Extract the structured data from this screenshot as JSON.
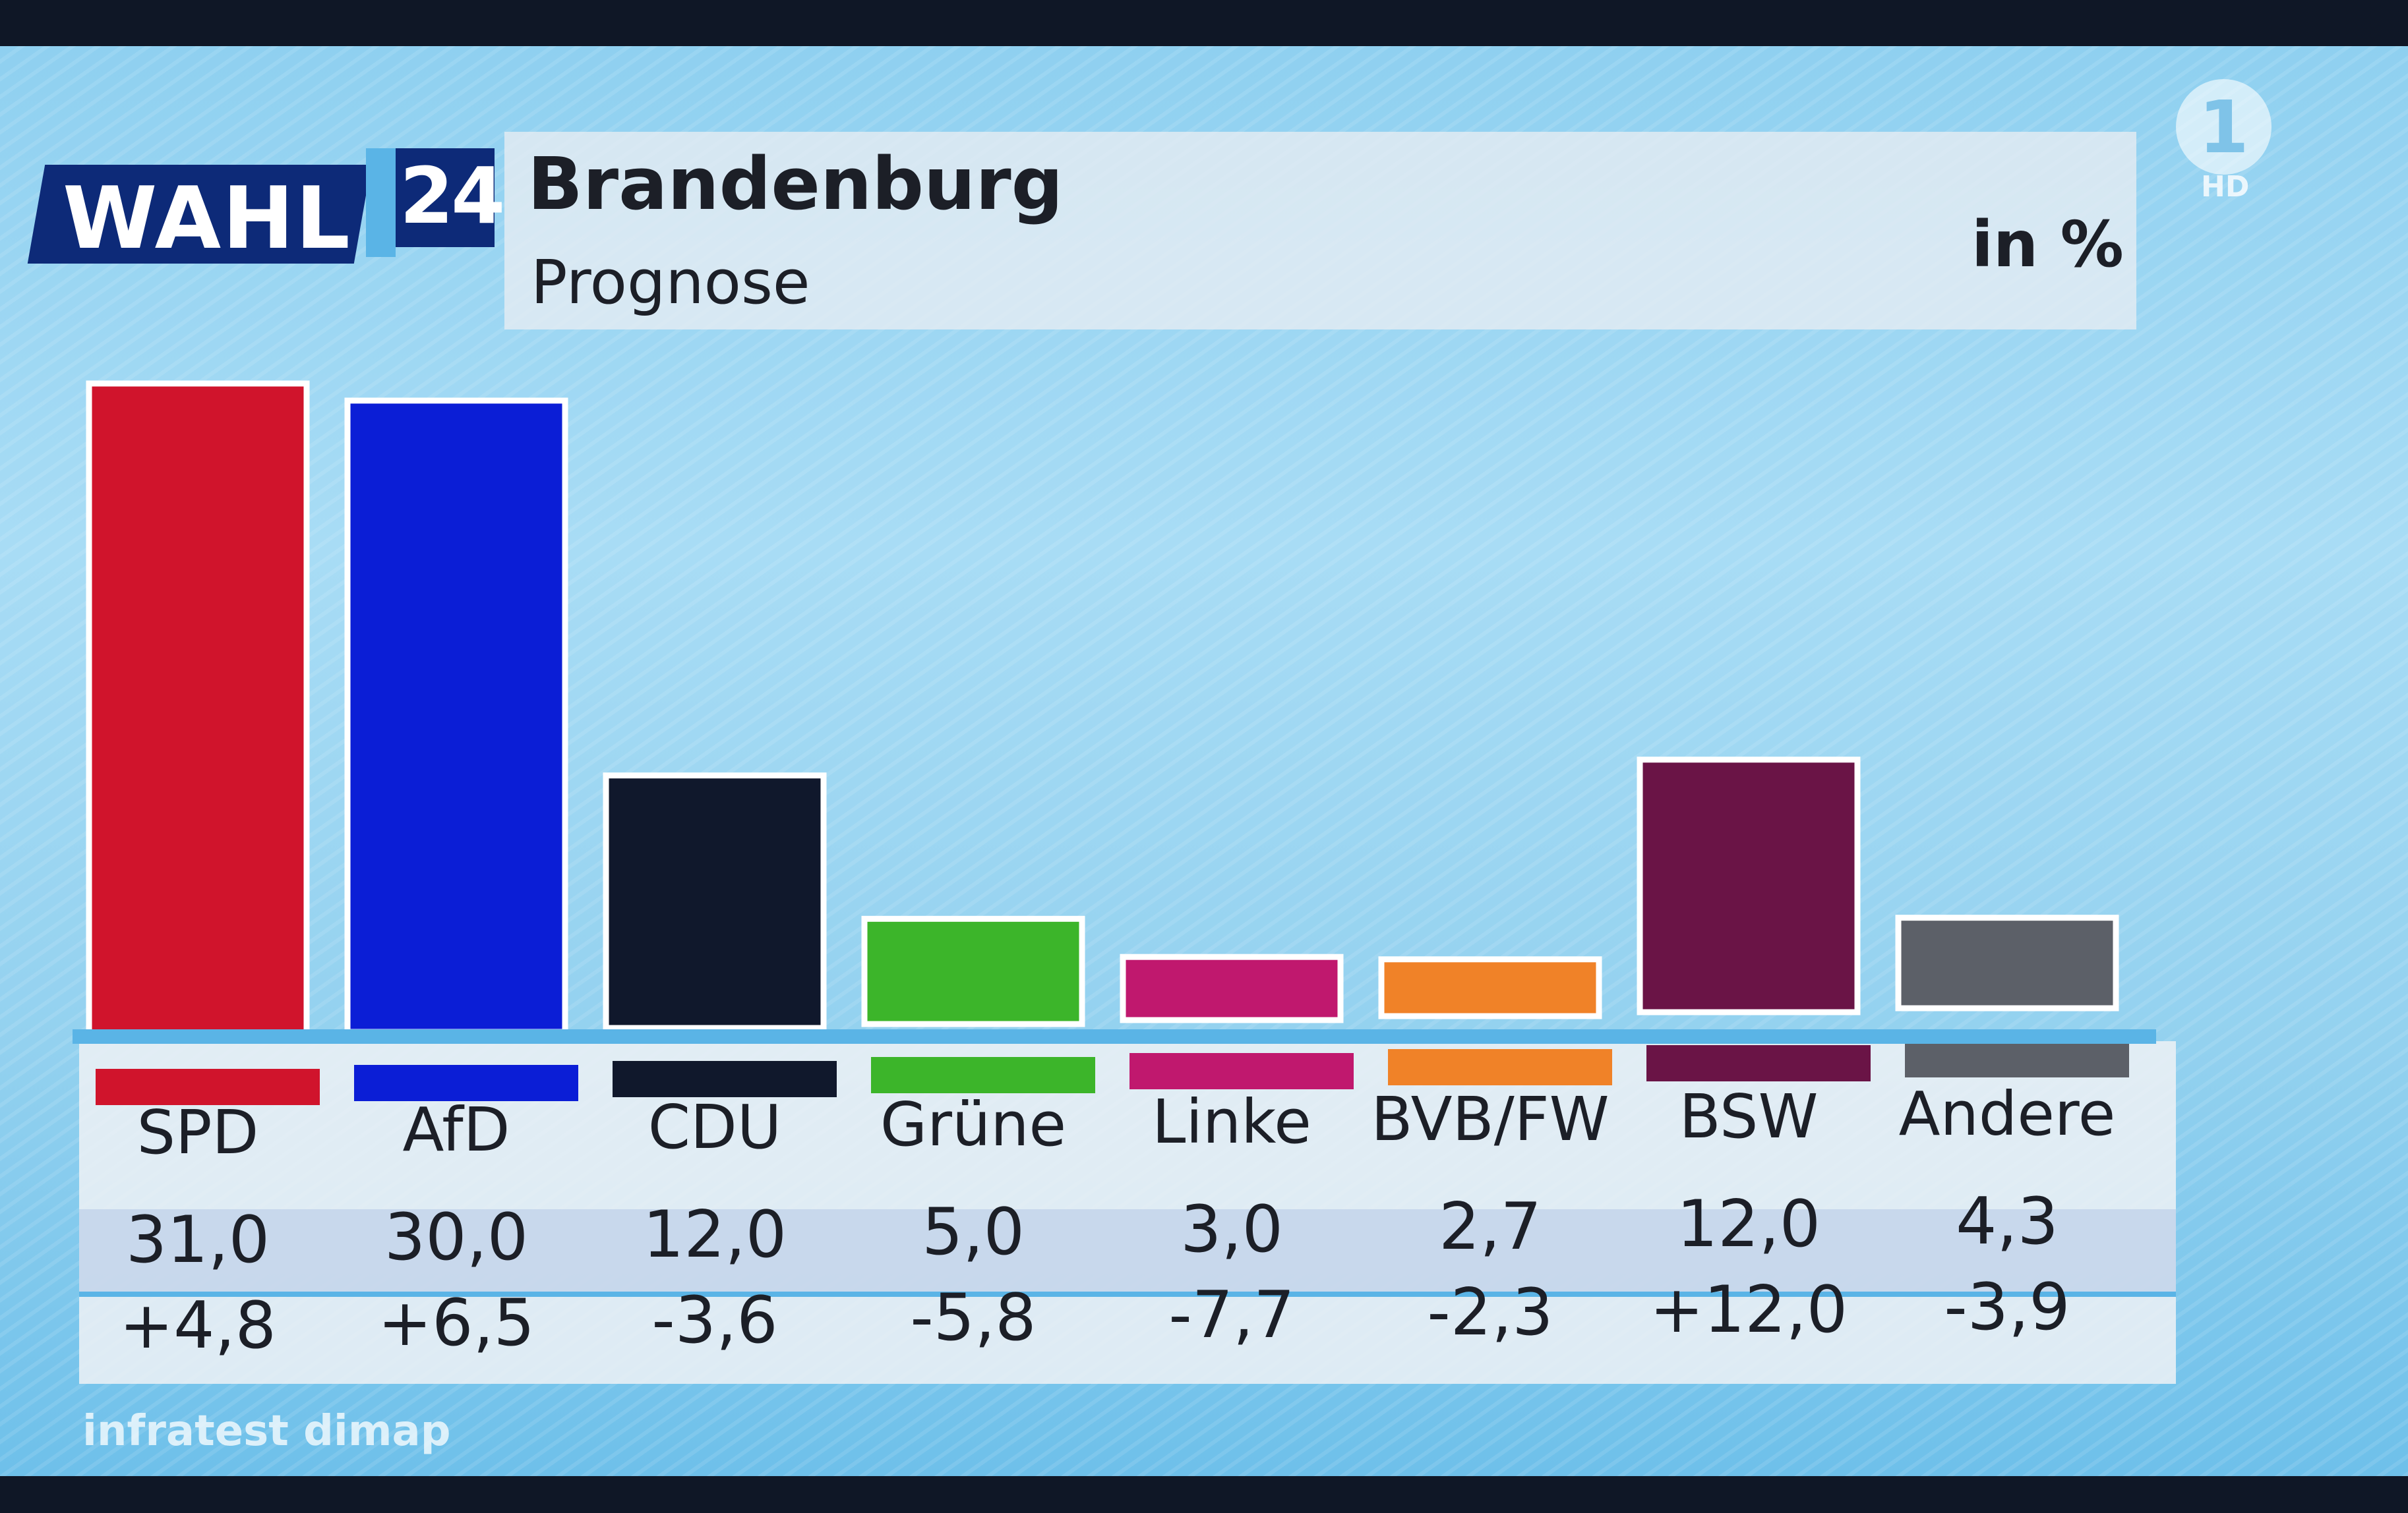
{
  "header": {
    "brand_word": "WAHL",
    "brand_year": "24",
    "title": "Brandenburg",
    "subtitle": "Prognose",
    "unit": "in %"
  },
  "channel": {
    "logo": "1",
    "quality": "HD"
  },
  "source": "infratest dimap",
  "colors": {
    "SPD": "#d0142c",
    "AfD": "#0b1ed6",
    "CDU": "#10182c",
    "Grüne": "#3cb52a",
    "Linke": "#c0186e",
    "BVB/FW": "#f08228",
    "BSW": "#6a1446",
    "Andere": "#5c6068"
  },
  "chart_data": {
    "type": "bar",
    "title": "Brandenburg",
    "subtitle": "Prognose",
    "unit": "in %",
    "categories": [
      "SPD",
      "AfD",
      "CDU",
      "Grüne",
      "Linke",
      "BVB/FW",
      "BSW",
      "Andere"
    ],
    "values": [
      "31,0",
      "30,0",
      "12,0",
      "5,0",
      "3,0",
      "2,7",
      "12,0",
      "4,3"
    ],
    "numeric_values": [
      31.0,
      30.0,
      12.0,
      5.0,
      3.0,
      2.7,
      12.0,
      4.3
    ],
    "changes": [
      "+4,8",
      "+6,5",
      "-3,6",
      "-5,8",
      "-7,7",
      "-2,3",
      "+12,0",
      "-3,9"
    ],
    "ylim": [
      0,
      31
    ],
    "grid": false,
    "legend": "none"
  }
}
